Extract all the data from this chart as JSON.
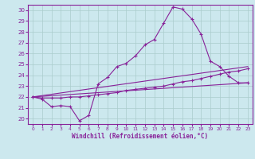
{
  "xlabel": "Windchill (Refroidissement éolien,°C)",
  "xlim": [
    -0.5,
    23.5
  ],
  "ylim": [
    19.5,
    30.5
  ],
  "yticks": [
    20,
    21,
    22,
    23,
    24,
    25,
    26,
    27,
    28,
    29,
    30
  ],
  "xticks": [
    0,
    1,
    2,
    3,
    4,
    5,
    6,
    7,
    8,
    9,
    10,
    11,
    12,
    13,
    14,
    15,
    16,
    17,
    18,
    19,
    20,
    21,
    22,
    23
  ],
  "bg_color": "#cce8ee",
  "line_color": "#882299",
  "grid_color": "#aacccc",
  "line1_x": [
    0,
    1,
    2,
    3,
    4,
    5,
    6,
    7,
    8,
    9,
    10,
    11,
    12,
    13,
    14,
    15,
    16,
    17,
    18,
    19,
    20,
    21,
    22,
    23
  ],
  "line1_y": [
    22.0,
    21.8,
    21.1,
    21.2,
    21.1,
    19.8,
    20.3,
    23.2,
    23.8,
    24.8,
    25.1,
    25.8,
    26.8,
    27.3,
    28.8,
    30.3,
    30.1,
    29.2,
    27.8,
    25.3,
    24.8,
    23.9,
    23.3,
    23.3
  ],
  "line2_x": [
    0,
    1,
    2,
    3,
    4,
    5,
    6,
    7,
    8,
    9,
    10,
    11,
    12,
    13,
    14,
    15,
    16,
    17,
    18,
    19,
    20,
    21,
    22,
    23
  ],
  "line2_y": [
    22.0,
    21.9,
    21.9,
    21.9,
    22.0,
    22.0,
    22.1,
    22.2,
    22.3,
    22.4,
    22.6,
    22.7,
    22.8,
    22.9,
    23.0,
    23.2,
    23.4,
    23.5,
    23.7,
    23.9,
    24.1,
    24.3,
    24.4,
    24.6
  ],
  "line3_x": [
    0,
    23
  ],
  "line3_y": [
    22.0,
    23.3
  ],
  "line4_x": [
    0,
    23
  ],
  "line4_y": [
    22.0,
    24.8
  ]
}
